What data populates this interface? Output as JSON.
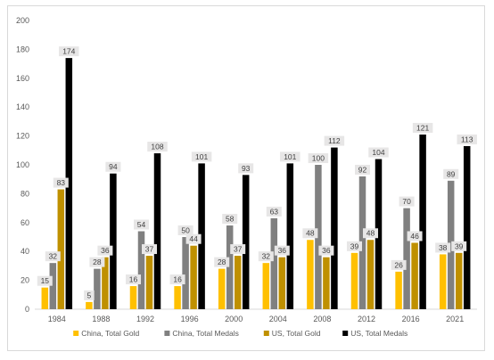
{
  "chart_data": {
    "type": "bar",
    "categories": [
      "1984",
      "1988",
      "1992",
      "1996",
      "2000",
      "2004",
      "2008",
      "2012",
      "2016",
      "2021"
    ],
    "series": [
      {
        "name": "China, Total Gold",
        "color": "#ffc000",
        "values": [
          15,
          5,
          16,
          16,
          28,
          32,
          48,
          39,
          26,
          38
        ]
      },
      {
        "name": "China, Total Medals",
        "color": "#808080",
        "values": [
          32,
          28,
          54,
          50,
          58,
          63,
          100,
          92,
          70,
          89
        ]
      },
      {
        "name": "US, Total Gold",
        "color": "#bf9000",
        "values": [
          83,
          36,
          37,
          44,
          37,
          36,
          36,
          48,
          46,
          39
        ]
      },
      {
        "name": "US, Total Medals",
        "color": "#000000",
        "values": [
          174,
          94,
          108,
          101,
          93,
          101,
          112,
          104,
          121,
          113
        ]
      }
    ],
    "ylim": [
      0,
      200
    ],
    "yticks": [
      0,
      20,
      40,
      60,
      80,
      100,
      120,
      140,
      160,
      180,
      200
    ],
    "grid": false,
    "legend_position": "bottom",
    "data_labels": true,
    "title": "",
    "xlabel": "",
    "ylabel": ""
  }
}
